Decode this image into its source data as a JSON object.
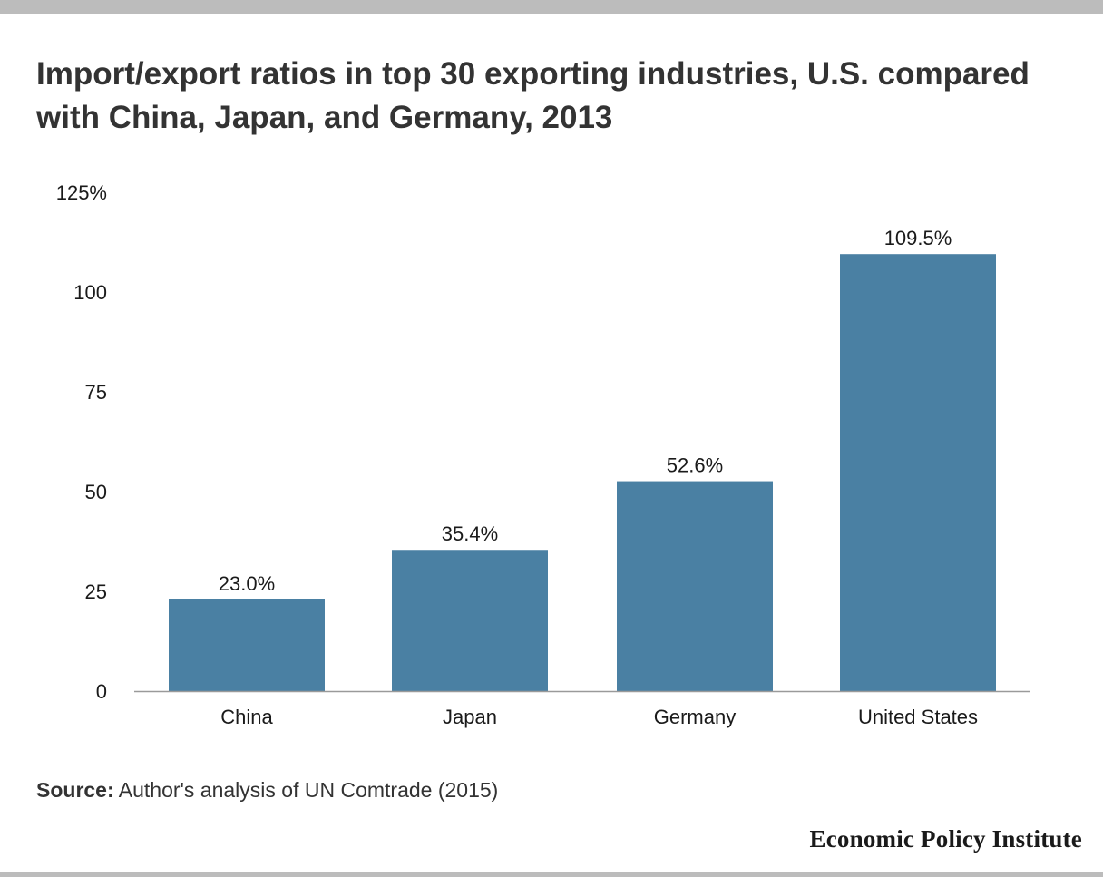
{
  "title": "Import/export ratios in top 30 exporting industries, U.S. compared with China, Japan, and Germany, 2013",
  "source": {
    "label": "Source:",
    "text": "Author's analysis of UN Comtrade (2015)"
  },
  "brand": "Economic Policy Institute",
  "colors": {
    "bar": "#4a80a3",
    "axis": "#9a9a9a",
    "frame_bars": "#bcbcbc"
  },
  "chart_data": {
    "type": "bar",
    "categories": [
      "China",
      "Japan",
      "Germany",
      "United States"
    ],
    "values": [
      23.0,
      35.4,
      52.6,
      109.5
    ],
    "data_labels": [
      "23.0%",
      "35.4%",
      "52.6%",
      "109.5%"
    ],
    "title": "Import/export ratios in top 30 exporting industries, U.S. compared with China, Japan, and Germany, 2013",
    "xlabel": "",
    "ylabel": "",
    "ylim": [
      0,
      125
    ],
    "yticks": [
      0,
      25,
      50,
      75,
      100,
      125
    ],
    "ytick_labels": [
      "0",
      "25",
      "50",
      "75",
      "100",
      "125%"
    ],
    "grid": false,
    "legend": "none"
  }
}
